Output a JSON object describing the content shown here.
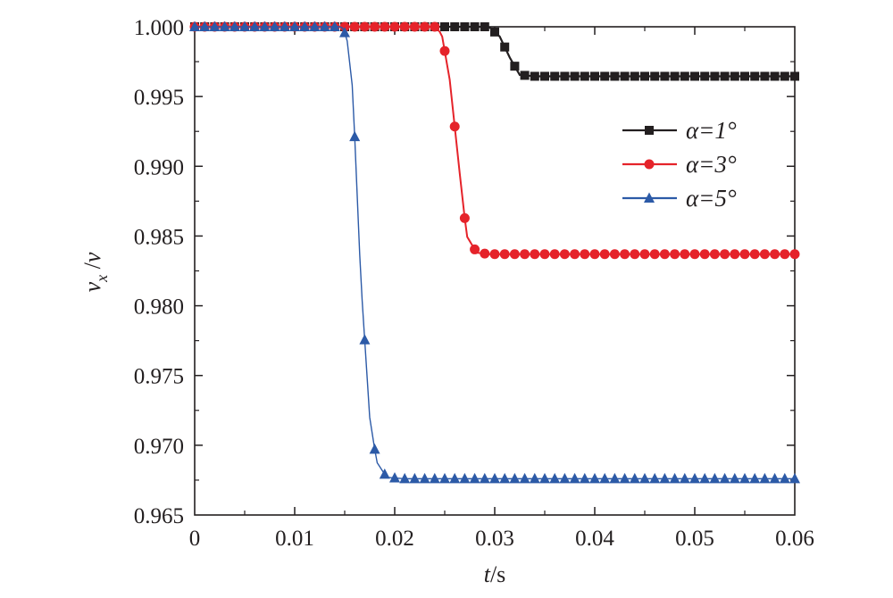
{
  "chart_data": {
    "type": "line",
    "xlabel": "t/s",
    "ylabel": "v_x/v",
    "xlim": [
      0,
      0.06
    ],
    "ylim": [
      0.965,
      1.0
    ],
    "x_ticks": [
      "0",
      "0.01",
      "0.02",
      "0.03",
      "0.04",
      "0.05",
      "0.06"
    ],
    "y_ticks": [
      "1.000",
      "0.995",
      "0.990",
      "0.985",
      "0.980",
      "0.975",
      "0.970",
      "0.965"
    ],
    "legend_position": "top-right",
    "grid": false,
    "series": [
      {
        "name": "α=1°",
        "color": "#231f20",
        "marker": "square",
        "x": [
          0,
          0.024,
          0.026,
          0.028,
          0.029,
          0.0295,
          0.0305,
          0.0315,
          0.0325,
          0.034,
          0.06
        ],
        "y": [
          1.0,
          1.0,
          1.0,
          1.0,
          1.0,
          0.99995,
          0.9993,
          0.9978,
          0.99655,
          0.99645,
          0.99645
        ]
      },
      {
        "name": "α=3°",
        "color": "#e5232a",
        "marker": "circle",
        "x": [
          0,
          0.024,
          0.0247,
          0.0255,
          0.0265,
          0.0272,
          0.0282,
          0.0295,
          0.06
        ],
        "y": [
          1.0,
          1.0,
          0.9995,
          0.9962,
          0.9895,
          0.985,
          0.9838,
          0.9837,
          0.9837
        ]
      },
      {
        "name": "α=5°",
        "color": "#2c5aa7",
        "marker": "triangle",
        "x": [
          0,
          0.0147,
          0.0152,
          0.0158,
          0.0166,
          0.0175,
          0.0182,
          0.0192,
          0.021,
          0.06
        ],
        "y": [
          1.0,
          1.0,
          0.9993,
          0.9955,
          0.982,
          0.972,
          0.9688,
          0.9677,
          0.9676,
          0.9676
        ]
      }
    ]
  }
}
